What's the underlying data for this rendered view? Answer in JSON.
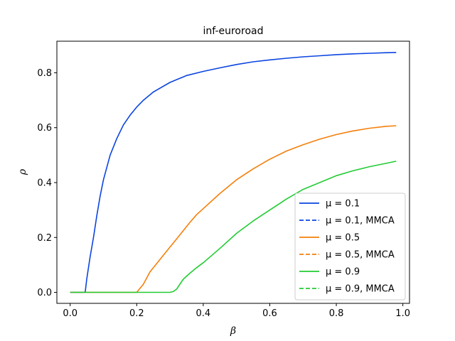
{
  "chart_data": {
    "type": "line",
    "title": "inf-euroroad",
    "xlabel": "β",
    "ylabel": "ρ",
    "xlim": [
      -0.04,
      1.02
    ],
    "ylim": [
      -0.04,
      0.915
    ],
    "xticks": [
      "0.0",
      "0.2",
      "0.4",
      "0.6",
      "0.8",
      "1.0"
    ],
    "yticks": [
      "0.0",
      "0.2",
      "0.4",
      "0.6",
      "0.8"
    ],
    "grid": false,
    "legend_position": "lower right",
    "legend": [
      {
        "label": "μ = 0.1",
        "color": "#0b45e0",
        "style": "solid"
      },
      {
        "label": "μ = 0.1, MMCA",
        "color": "#0b45e0",
        "style": "dashed"
      },
      {
        "label": "μ = 0.5",
        "color": "#f57f0a",
        "style": "solid"
      },
      {
        "label": "μ = 0.5, MMCA",
        "color": "#f57f0a",
        "style": "dashed"
      },
      {
        "label": "μ = 0.9",
        "color": "#22cc33",
        "style": "solid"
      },
      {
        "label": "μ = 0.9, MMCA",
        "color": "#22cc33",
        "style": "dashed"
      }
    ],
    "series": [
      {
        "name": "μ = 0.1",
        "color": "#0b45e0",
        "style": "solid",
        "x": [
          0.0,
          0.02,
          0.04,
          0.045,
          0.05,
          0.06,
          0.07,
          0.08,
          0.09,
          0.1,
          0.12,
          0.14,
          0.16,
          0.18,
          0.2,
          0.22,
          0.25,
          0.3,
          0.35,
          0.4,
          0.45,
          0.5,
          0.55,
          0.6,
          0.65,
          0.7,
          0.75,
          0.8,
          0.85,
          0.9,
          0.95,
          0.98
        ],
        "y": [
          0.0,
          0.0,
          0.0,
          0.0,
          0.05,
          0.13,
          0.2,
          0.28,
          0.35,
          0.41,
          0.5,
          0.56,
          0.61,
          0.645,
          0.675,
          0.7,
          0.73,
          0.765,
          0.79,
          0.805,
          0.818,
          0.83,
          0.84,
          0.847,
          0.853,
          0.858,
          0.862,
          0.866,
          0.869,
          0.871,
          0.873,
          0.874
        ]
      },
      {
        "name": "μ = 0.5",
        "color": "#f57f0a",
        "style": "solid",
        "x": [
          0.0,
          0.1,
          0.19,
          0.2,
          0.22,
          0.24,
          0.26,
          0.28,
          0.3,
          0.32,
          0.34,
          0.36,
          0.38,
          0.4,
          0.45,
          0.5,
          0.55,
          0.6,
          0.65,
          0.7,
          0.75,
          0.8,
          0.85,
          0.9,
          0.95,
          0.98
        ],
        "y": [
          0.0,
          0.0,
          0.0,
          0.0,
          0.03,
          0.075,
          0.105,
          0.135,
          0.165,
          0.195,
          0.225,
          0.255,
          0.283,
          0.305,
          0.36,
          0.41,
          0.45,
          0.485,
          0.515,
          0.538,
          0.558,
          0.575,
          0.588,
          0.598,
          0.605,
          0.607
        ]
      },
      {
        "name": "μ = 0.9",
        "color": "#22cc33",
        "style": "solid",
        "x": [
          0.0,
          0.1,
          0.2,
          0.3,
          0.31,
          0.32,
          0.33,
          0.34,
          0.36,
          0.38,
          0.4,
          0.45,
          0.5,
          0.55,
          0.6,
          0.65,
          0.7,
          0.75,
          0.8,
          0.85,
          0.9,
          0.95,
          0.98
        ],
        "y": [
          0.0,
          0.0,
          0.0,
          0.0,
          0.003,
          0.012,
          0.03,
          0.048,
          0.07,
          0.09,
          0.108,
          0.16,
          0.215,
          0.26,
          0.3,
          0.34,
          0.375,
          0.4,
          0.425,
          0.443,
          0.458,
          0.47,
          0.478
        ]
      }
    ]
  }
}
